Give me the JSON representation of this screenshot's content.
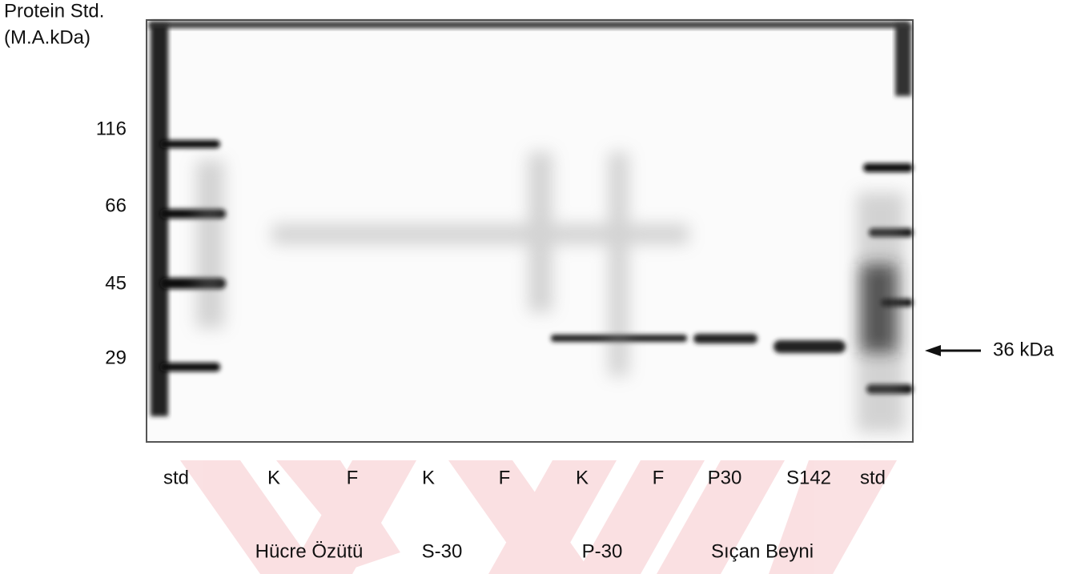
{
  "header": {
    "title": "Protein Std.",
    "unit": "(M.A.kDa)"
  },
  "markers": [
    "116",
    "66",
    "45",
    "29"
  ],
  "annotation": "36 kDa",
  "lanes": [
    "std",
    "K",
    "F",
    "K",
    "F",
    "K",
    "F",
    "P30",
    "S142",
    "std"
  ],
  "groups": [
    "Hücre Özütü",
    "S-30",
    "P-30",
    "Sıçan Beyni"
  ]
}
